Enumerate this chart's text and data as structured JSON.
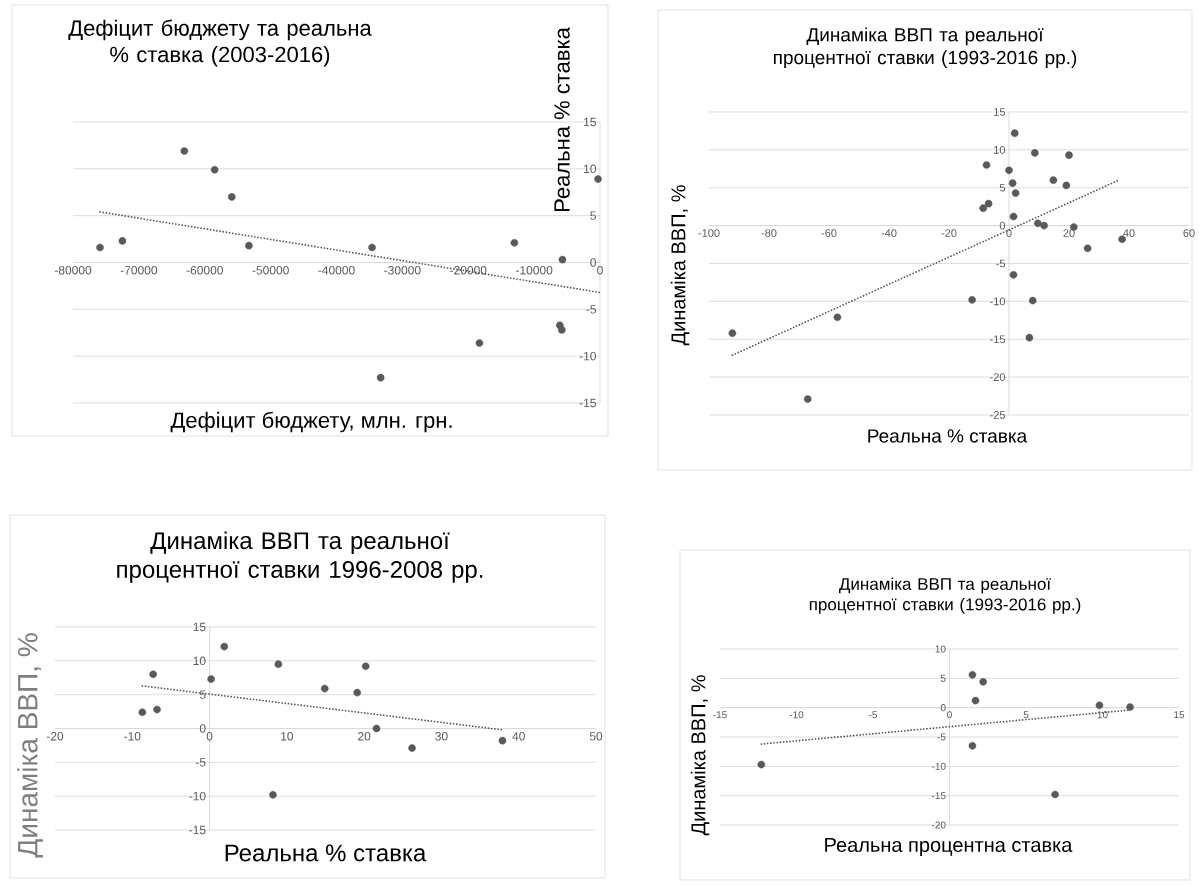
{
  "chart_data": [
    {
      "type": "scatter",
      "title": "Дефіцит бюджету та реальна % ставка (2003-2016)",
      "xlabel": "Дефіцит бюджету, млн. грн.",
      "ylabel": "Реальна % ставка",
      "xlim": [
        -80000,
        0
      ],
      "ylim": [
        -15,
        15
      ],
      "xticks": [
        -80000,
        -70000,
        -60000,
        -50000,
        -40000,
        -30000,
        -20000,
        -10000,
        0
      ],
      "yticks": [
        -15,
        -10,
        -5,
        0,
        5,
        10,
        15
      ],
      "grid": "y",
      "series": [
        {
          "type": "scatter",
          "color": "#595959",
          "marker": "circle",
          "x": [
            -75900,
            -72500,
            -63100,
            -58500,
            -55900,
            -53300,
            -34600,
            -33300,
            -18300,
            -13000,
            -6100,
            -5800,
            -5700,
            -300
          ],
          "values": [
            1.6,
            2.3,
            11.9,
            9.9,
            7.0,
            1.8,
            1.6,
            -12.3,
            -8.6,
            2.1,
            -6.7,
            -7.2,
            0.3,
            8.9
          ]
        },
        {
          "type": "line",
          "color": "#595959",
          "line_style": "dotted",
          "marker": "none",
          "x": [
            -75900,
            0
          ],
          "values": [
            5.4,
            -3.2
          ]
        }
      ]
    },
    {
      "type": "scatter",
      "title": "Динаміка ВВП та реальної процентної ставки (1993-2016 рр.)",
      "xlabel": "Реальна % ставка",
      "ylabel": "Динаміка ВВП, %",
      "xlim": [
        -100,
        60
      ],
      "ylim": [
        -25,
        15
      ],
      "xticks": [
        -100,
        -80,
        -60,
        -40,
        -20,
        0,
        20,
        40,
        60
      ],
      "yticks": [
        -25,
        -20,
        -15,
        -10,
        -5,
        0,
        5,
        10,
        15
      ],
      "grid": "y",
      "series": [
        {
          "type": "scatter",
          "color": "#595959",
          "marker": "circle",
          "x": [
            -92.2,
            -67.1,
            -57.2,
            -12.3,
            -8.6,
            -7.5,
            -6.8,
            0,
            1.2,
            1.5,
            1.5,
            1.9,
            2.2,
            6.8,
            7.9,
            8.6,
            9.6,
            11.7,
            14.8,
            19.1,
            20.0,
            21.6,
            26.2,
            37.7
          ],
          "values": [
            -14.2,
            -22.9,
            -12.1,
            -9.8,
            2.3,
            8.0,
            2.9,
            7.3,
            5.6,
            1.2,
            -6.5,
            12.2,
            4.3,
            -14.8,
            -9.9,
            9.6,
            0.3,
            0.0,
            6.0,
            5.3,
            9.3,
            -0.2,
            -3.0,
            -1.8
          ]
        },
        {
          "type": "line",
          "color": "#595959",
          "line_style": "dotted",
          "marker": "none",
          "x": [
            -92.2,
            36.6
          ],
          "values": [
            -17.1,
            6.0
          ]
        }
      ]
    },
    {
      "type": "scatter",
      "title": "Динаміка ВВП та реальної процентної ставки 1996-2008 рр.",
      "xlabel": "Реальна % ставка",
      "ylabel": "Динаміка ВВП, %",
      "xlim": [
        -20,
        50
      ],
      "ylim": [
        -15,
        15
      ],
      "xticks": [
        -20,
        -10,
        0,
        10,
        20,
        30,
        40,
        50
      ],
      "yticks": [
        -15,
        -10,
        -5,
        0,
        5,
        10,
        15
      ],
      "grid": "y",
      "series": [
        {
          "type": "scatter",
          "color": "#595959",
          "marker": "circle",
          "x": [
            -8.7,
            -7.3,
            -6.8,
            0.2,
            1.9,
            8.2,
            8.9,
            14.9,
            19.1,
            20.2,
            21.6,
            26.2,
            37.9
          ],
          "values": [
            2.4,
            8.0,
            2.8,
            7.3,
            12.1,
            -9.8,
            9.5,
            5.9,
            5.3,
            9.2,
            0.0,
            -2.9,
            -1.8
          ]
        },
        {
          "type": "line",
          "color": "#595959",
          "line_style": "dotted",
          "marker": "none",
          "x": [
            -8.7,
            37.9
          ],
          "values": [
            6.3,
            -0.2
          ]
        }
      ]
    },
    {
      "type": "scatter",
      "title": "Динаміка ВВП та реальної процентної ставки (1993-2016 рр.)",
      "xlabel": "Реальна процентна ставка",
      "ylabel": "Динаміка ВВП, %",
      "xlim": [
        -15,
        15
      ],
      "ylim": [
        -20,
        10
      ],
      "xticks": [
        -15,
        -10,
        -5,
        0,
        5,
        10,
        15
      ],
      "yticks": [
        -20,
        -15,
        -10,
        -5,
        0,
        5,
        10
      ],
      "grid": "y",
      "series": [
        {
          "type": "scatter",
          "color": "#595959",
          "marker": "circle",
          "x": [
            -12.3,
            1.5,
            1.5,
            1.7,
            2.2,
            6.9,
            9.8,
            11.8
          ],
          "values": [
            -9.7,
            5.6,
            -6.5,
            1.2,
            4.4,
            -14.8,
            0.4,
            0.1
          ]
        },
        {
          "type": "line",
          "color": "#595959",
          "line_style": "dotted",
          "marker": "none",
          "x": [
            -12.3,
            11.8
          ],
          "values": [
            -6.2,
            -0.4
          ]
        }
      ]
    }
  ]
}
